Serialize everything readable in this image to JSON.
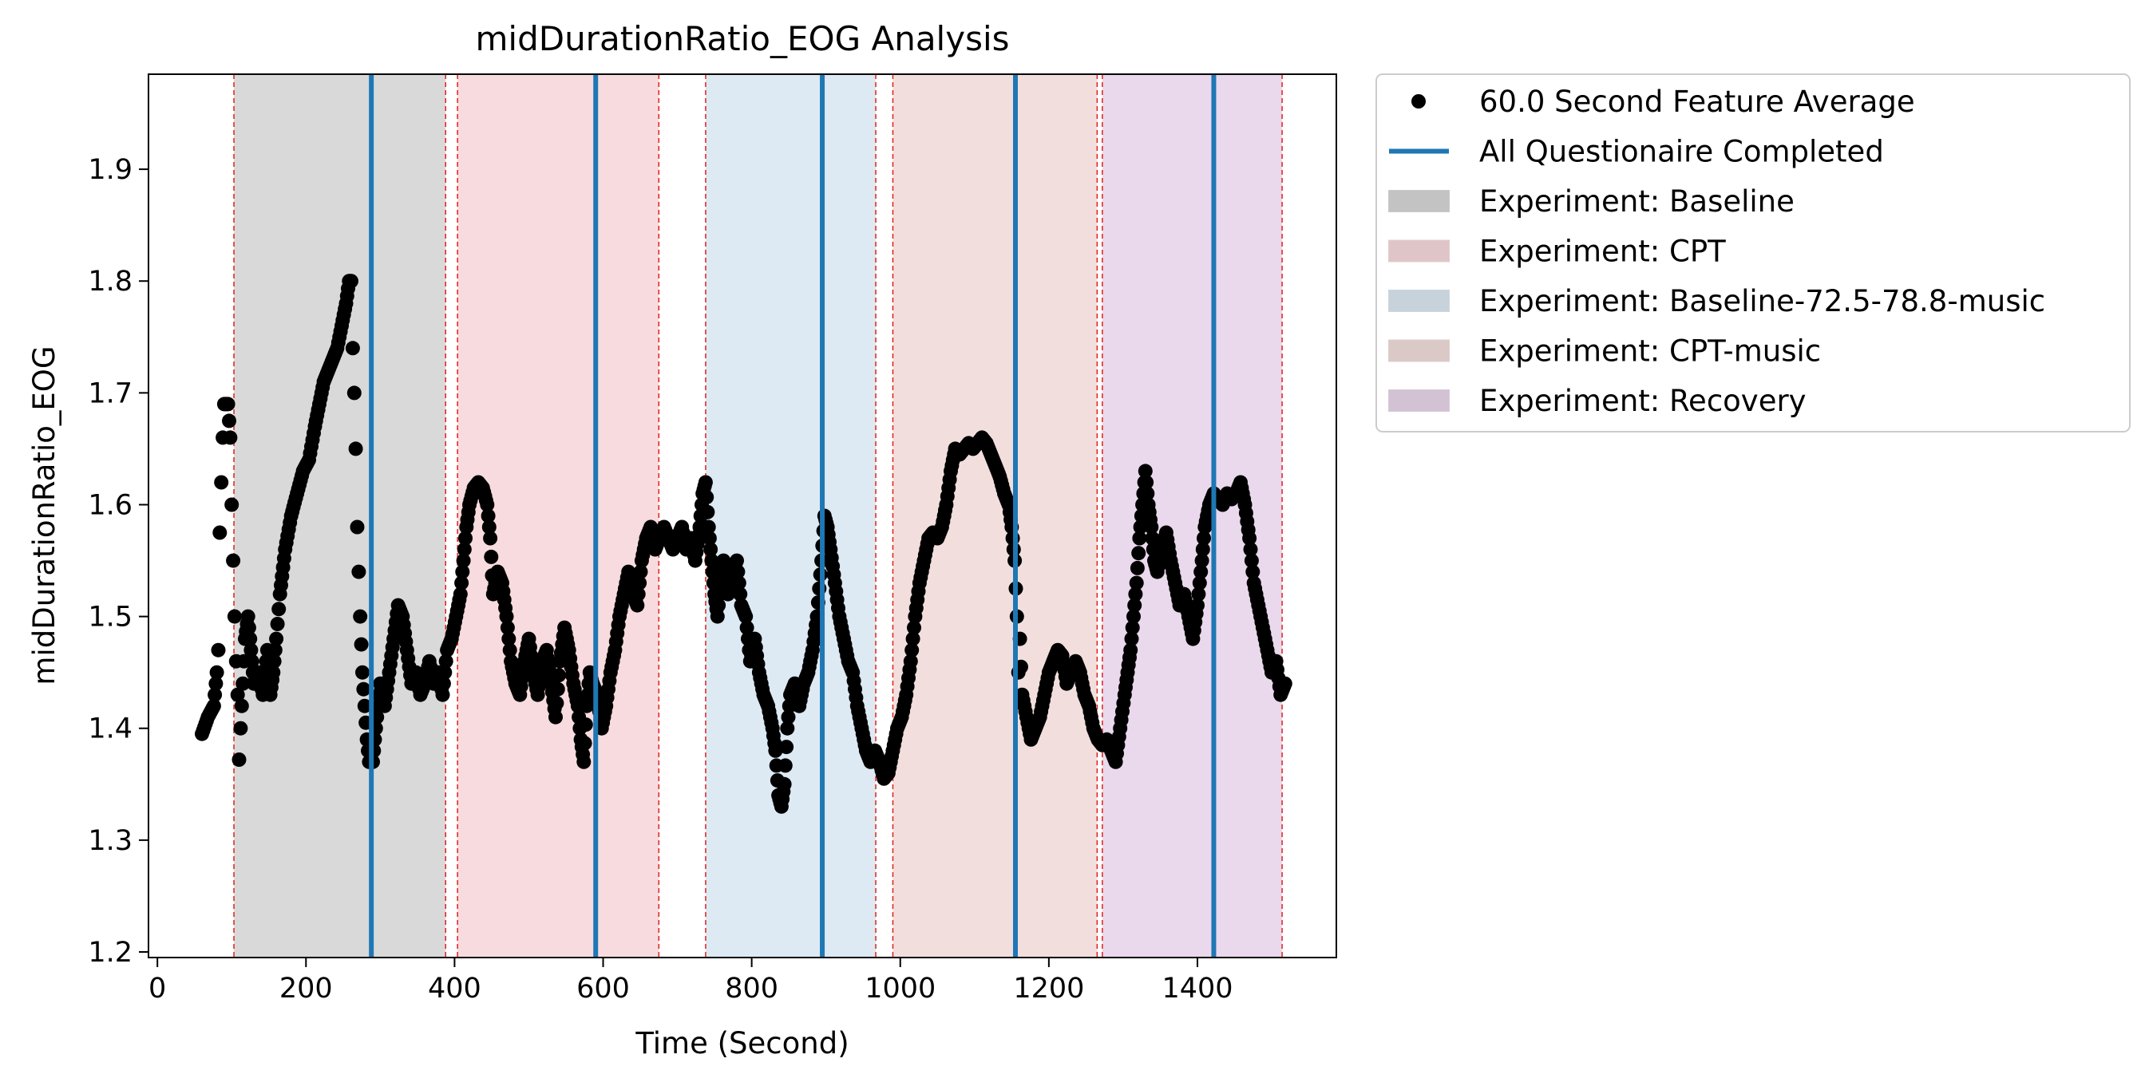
{
  "chart_data": {
    "type": "scatter",
    "title": "midDurationRatio_EOG Analysis",
    "xlabel": "Time (Second)",
    "ylabel": "midDurationRatio_EOG",
    "xlim": [
      -12,
      1587
    ],
    "ylim": [
      1.195,
      1.985
    ],
    "xticks": [
      0,
      200,
      400,
      600,
      800,
      1000,
      1200,
      1400
    ],
    "yticks": [
      1.2,
      1.3,
      1.4,
      1.5,
      1.6,
      1.7,
      1.8,
      1.9
    ],
    "grid": false,
    "legend_position": "outside-top-right",
    "legend": [
      {
        "label": "60.0 Second Feature Average",
        "kind": "marker",
        "color": "#000000"
      },
      {
        "label": "All Questionaire Completed",
        "kind": "line",
        "color": "#1f77b4"
      },
      {
        "label": "Experiment: Baseline",
        "kind": "patch",
        "color": "#d9d9d9"
      },
      {
        "label": "Experiment: CPT",
        "kind": "patch",
        "color": "#f8dbde"
      },
      {
        "label": "Experiment: Baseline-72.5-78.8-music",
        "kind": "patch",
        "color": "#dde9f3"
      },
      {
        "label": "Experiment: CPT-music",
        "kind": "patch",
        "color": "#f2dfdd"
      },
      {
        "label": "Experiment: Recovery",
        "kind": "patch",
        "color": "#ead8ec"
      }
    ],
    "regions": [
      {
        "name": "Experiment: Baseline",
        "start": 103,
        "end": 388,
        "color": "#d9d9d9"
      },
      {
        "name": "Experiment: CPT",
        "start": 404,
        "end": 675,
        "color": "#f8dbde"
      },
      {
        "name": "Experiment: Baseline-72.5-78.8-music",
        "start": 738,
        "end": 967,
        "color": "#dde9f3"
      },
      {
        "name": "Experiment: CPT-music",
        "start": 990,
        "end": 1265,
        "color": "#f2dfdd"
      },
      {
        "name": "Experiment: Recovery",
        "start": 1272,
        "end": 1514,
        "color": "#ead8ec"
      }
    ],
    "boundary_lines": [
      103,
      388,
      404,
      675,
      738,
      967,
      990,
      1265,
      1272,
      1514
    ],
    "questionnaire_lines": [
      288,
      590,
      895,
      1155,
      1422
    ],
    "series_points": [
      [
        60,
        1.395
      ],
      [
        68,
        1.41
      ],
      [
        76,
        1.42
      ],
      [
        80,
        1.45
      ],
      [
        82,
        1.47
      ],
      [
        84,
        1.575
      ],
      [
        86,
        1.62
      ],
      [
        88,
        1.66
      ],
      [
        90,
        1.69
      ],
      [
        95,
        1.69
      ],
      [
        98,
        1.66
      ],
      [
        100,
        1.6
      ],
      [
        102,
        1.55
      ],
      [
        104,
        1.5
      ],
      [
        106,
        1.46
      ],
      [
        108,
        1.43
      ],
      [
        110,
        1.372
      ],
      [
        112,
        1.4
      ],
      [
        115,
        1.44
      ],
      [
        118,
        1.48
      ],
      [
        122,
        1.5
      ],
      [
        126,
        1.47
      ],
      [
        130,
        1.44
      ],
      [
        136,
        1.45
      ],
      [
        142,
        1.43
      ],
      [
        148,
        1.47
      ],
      [
        152,
        1.43
      ],
      [
        156,
        1.45
      ],
      [
        160,
        1.48
      ],
      [
        165,
        1.52
      ],
      [
        172,
        1.56
      ],
      [
        180,
        1.59
      ],
      [
        188,
        1.61
      ],
      [
        196,
        1.63
      ],
      [
        204,
        1.64
      ],
      [
        212,
        1.67
      ],
      [
        218,
        1.69
      ],
      [
        224,
        1.71
      ],
      [
        230,
        1.72
      ],
      [
        236,
        1.73
      ],
      [
        242,
        1.74
      ],
      [
        248,
        1.76
      ],
      [
        254,
        1.78
      ],
      [
        258,
        1.8
      ],
      [
        261,
        1.8
      ],
      [
        263,
        1.74
      ],
      [
        265,
        1.7
      ],
      [
        267,
        1.65
      ],
      [
        269,
        1.58
      ],
      [
        271,
        1.54
      ],
      [
        273,
        1.5
      ],
      [
        276,
        1.45
      ],
      [
        279,
        1.42
      ],
      [
        282,
        1.39
      ],
      [
        285,
        1.37
      ],
      [
        290,
        1.37
      ],
      [
        294,
        1.4
      ],
      [
        300,
        1.44
      ],
      [
        306,
        1.42
      ],
      [
        312,
        1.45
      ],
      [
        318,
        1.48
      ],
      [
        324,
        1.51
      ],
      [
        330,
        1.5
      ],
      [
        336,
        1.47
      ],
      [
        342,
        1.44
      ],
      [
        348,
        1.45
      ],
      [
        354,
        1.43
      ],
      [
        360,
        1.44
      ],
      [
        366,
        1.46
      ],
      [
        372,
        1.44
      ],
      [
        378,
        1.45
      ],
      [
        384,
        1.43
      ],
      [
        390,
        1.47
      ],
      [
        396,
        1.48
      ],
      [
        402,
        1.5
      ],
      [
        408,
        1.52
      ],
      [
        412,
        1.55
      ],
      [
        416,
        1.58
      ],
      [
        420,
        1.6
      ],
      [
        426,
        1.615
      ],
      [
        432,
        1.62
      ],
      [
        438,
        1.615
      ],
      [
        444,
        1.6
      ],
      [
        448,
        1.57
      ],
      [
        452,
        1.52
      ],
      [
        458,
        1.54
      ],
      [
        464,
        1.53
      ],
      [
        470,
        1.5
      ],
      [
        476,
        1.46
      ],
      [
        482,
        1.44
      ],
      [
        488,
        1.43
      ],
      [
        494,
        1.46
      ],
      [
        500,
        1.48
      ],
      [
        506,
        1.45
      ],
      [
        512,
        1.43
      ],
      [
        518,
        1.46
      ],
      [
        524,
        1.47
      ],
      [
        530,
        1.44
      ],
      [
        536,
        1.41
      ],
      [
        542,
        1.46
      ],
      [
        548,
        1.49
      ],
      [
        554,
        1.47
      ],
      [
        560,
        1.44
      ],
      [
        566,
        1.42
      ],
      [
        570,
        1.39
      ],
      [
        574,
        1.37
      ],
      [
        578,
        1.42
      ],
      [
        582,
        1.45
      ],
      [
        586,
        1.44
      ],
      [
        592,
        1.43
      ],
      [
        598,
        1.4
      ],
      [
        604,
        1.42
      ],
      [
        610,
        1.45
      ],
      [
        616,
        1.47
      ],
      [
        622,
        1.5
      ],
      [
        628,
        1.52
      ],
      [
        634,
        1.54
      ],
      [
        640,
        1.52
      ],
      [
        646,
        1.51
      ],
      [
        652,
        1.55
      ],
      [
        658,
        1.57
      ],
      [
        664,
        1.58
      ],
      [
        670,
        1.56
      ],
      [
        676,
        1.57
      ],
      [
        682,
        1.58
      ],
      [
        688,
        1.57
      ],
      [
        694,
        1.56
      ],
      [
        700,
        1.57
      ],
      [
        706,
        1.58
      ],
      [
        712,
        1.56
      ],
      [
        718,
        1.57
      ],
      [
        724,
        1.55
      ],
      [
        730,
        1.58
      ],
      [
        734,
        1.61
      ],
      [
        738,
        1.62
      ],
      [
        742,
        1.58
      ],
      [
        746,
        1.55
      ],
      [
        750,
        1.52
      ],
      [
        754,
        1.5
      ],
      [
        758,
        1.53
      ],
      [
        762,
        1.55
      ],
      [
        768,
        1.52
      ],
      [
        774,
        1.54
      ],
      [
        780,
        1.55
      ],
      [
        786,
        1.51
      ],
      [
        792,
        1.5
      ],
      [
        798,
        1.46
      ],
      [
        804,
        1.48
      ],
      [
        810,
        1.45
      ],
      [
        816,
        1.43
      ],
      [
        822,
        1.42
      ],
      [
        828,
        1.4
      ],
      [
        832,
        1.38
      ],
      [
        836,
        1.34
      ],
      [
        840,
        1.33
      ],
      [
        844,
        1.35
      ],
      [
        848,
        1.4
      ],
      [
        852,
        1.43
      ],
      [
        858,
        1.44
      ],
      [
        864,
        1.42
      ],
      [
        870,
        1.44
      ],
      [
        876,
        1.45
      ],
      [
        882,
        1.47
      ],
      [
        888,
        1.5
      ],
      [
        894,
        1.55
      ],
      [
        898,
        1.59
      ],
      [
        902,
        1.58
      ],
      [
        906,
        1.56
      ],
      [
        912,
        1.53
      ],
      [
        918,
        1.5
      ],
      [
        924,
        1.48
      ],
      [
        930,
        1.46
      ],
      [
        936,
        1.45
      ],
      [
        942,
        1.42
      ],
      [
        948,
        1.4
      ],
      [
        954,
        1.38
      ],
      [
        960,
        1.37
      ],
      [
        966,
        1.38
      ],
      [
        972,
        1.37
      ],
      [
        978,
        1.355
      ],
      [
        984,
        1.36
      ],
      [
        990,
        1.38
      ],
      [
        996,
        1.4
      ],
      [
        1002,
        1.41
      ],
      [
        1008,
        1.43
      ],
      [
        1014,
        1.46
      ],
      [
        1020,
        1.5
      ],
      [
        1026,
        1.53
      ],
      [
        1032,
        1.55
      ],
      [
        1038,
        1.57
      ],
      [
        1044,
        1.575
      ],
      [
        1050,
        1.57
      ],
      [
        1056,
        1.58
      ],
      [
        1062,
        1.6
      ],
      [
        1068,
        1.63
      ],
      [
        1074,
        1.65
      ],
      [
        1080,
        1.645
      ],
      [
        1086,
        1.65
      ],
      [
        1092,
        1.655
      ],
      [
        1098,
        1.65
      ],
      [
        1104,
        1.655
      ],
      [
        1110,
        1.66
      ],
      [
        1116,
        1.655
      ],
      [
        1122,
        1.645
      ],
      [
        1128,
        1.635
      ],
      [
        1134,
        1.625
      ],
      [
        1140,
        1.61
      ],
      [
        1146,
        1.6
      ],
      [
        1150,
        1.58
      ],
      [
        1154,
        1.55
      ],
      [
        1157,
        1.5
      ],
      [
        1159,
        1.45
      ],
      [
        1161,
        1.48
      ],
      [
        1164,
        1.43
      ],
      [
        1170,
        1.41
      ],
      [
        1176,
        1.39
      ],
      [
        1182,
        1.4
      ],
      [
        1188,
        1.41
      ],
      [
        1194,
        1.43
      ],
      [
        1200,
        1.45
      ],
      [
        1206,
        1.46
      ],
      [
        1212,
        1.47
      ],
      [
        1218,
        1.465
      ],
      [
        1224,
        1.44
      ],
      [
        1230,
        1.45
      ],
      [
        1236,
        1.46
      ],
      [
        1242,
        1.45
      ],
      [
        1248,
        1.43
      ],
      [
        1254,
        1.42
      ],
      [
        1260,
        1.4
      ],
      [
        1266,
        1.39
      ],
      [
        1272,
        1.385
      ],
      [
        1278,
        1.39
      ],
      [
        1284,
        1.38
      ],
      [
        1290,
        1.37
      ],
      [
        1296,
        1.4
      ],
      [
        1302,
        1.43
      ],
      [
        1306,
        1.45
      ],
      [
        1310,
        1.47
      ],
      [
        1314,
        1.5
      ],
      [
        1318,
        1.53
      ],
      [
        1322,
        1.57
      ],
      [
        1326,
        1.6
      ],
      [
        1330,
        1.63
      ],
      [
        1334,
        1.6
      ],
      [
        1338,
        1.58
      ],
      [
        1342,
        1.55
      ],
      [
        1346,
        1.54
      ],
      [
        1352,
        1.56
      ],
      [
        1358,
        1.575
      ],
      [
        1364,
        1.55
      ],
      [
        1370,
        1.53
      ],
      [
        1376,
        1.51
      ],
      [
        1382,
        1.52
      ],
      [
        1388,
        1.5
      ],
      [
        1394,
        1.48
      ],
      [
        1400,
        1.51
      ],
      [
        1406,
        1.55
      ],
      [
        1410,
        1.58
      ],
      [
        1416,
        1.6
      ],
      [
        1422,
        1.61
      ],
      [
        1428,
        1.605
      ],
      [
        1434,
        1.6
      ],
      [
        1440,
        1.61
      ],
      [
        1446,
        1.605
      ],
      [
        1452,
        1.61
      ],
      [
        1458,
        1.62
      ],
      [
        1464,
        1.6
      ],
      [
        1470,
        1.57
      ],
      [
        1476,
        1.53
      ],
      [
        1482,
        1.51
      ],
      [
        1488,
        1.49
      ],
      [
        1494,
        1.47
      ],
      [
        1500,
        1.45
      ],
      [
        1506,
        1.46
      ],
      [
        1512,
        1.43
      ],
      [
        1518,
        1.44
      ]
    ]
  }
}
